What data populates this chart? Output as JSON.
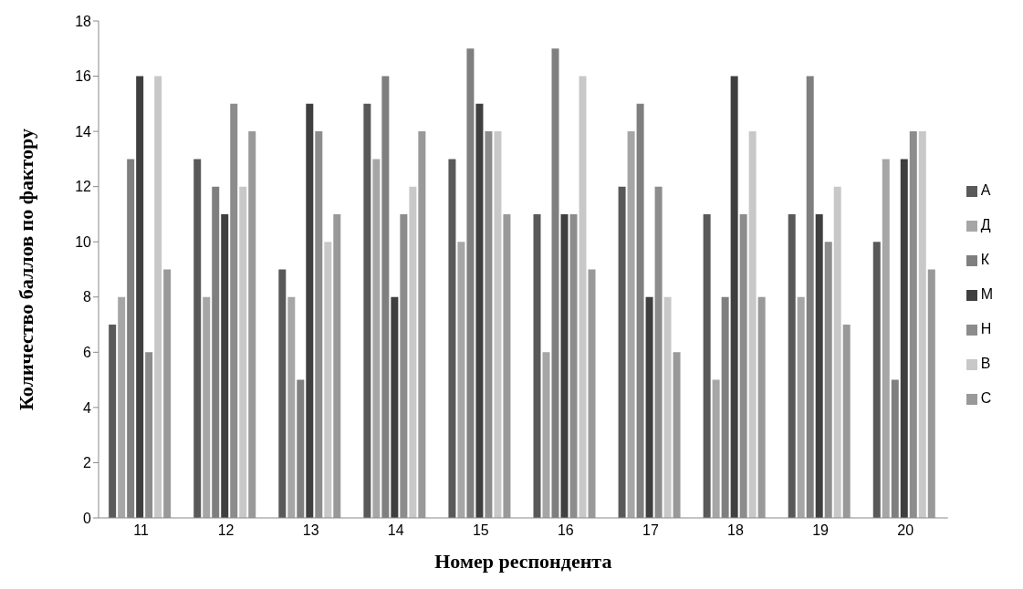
{
  "chart_data": {
    "type": "bar",
    "xlabel": "Номер респондента",
    "ylabel": "Количество баллов по фактору",
    "categories": [
      "11",
      "12",
      "13",
      "14",
      "15",
      "16",
      "17",
      "18",
      "19",
      "20"
    ],
    "series": [
      {
        "name": "А",
        "color": "#595959",
        "values": [
          7,
          13,
          9,
          15,
          13,
          11,
          12,
          11,
          11,
          10
        ]
      },
      {
        "name": "Д",
        "color": "#a6a6a6",
        "values": [
          8,
          8,
          8,
          13,
          10,
          6,
          14,
          5,
          8,
          13
        ]
      },
      {
        "name": "К",
        "color": "#7f7f7f",
        "values": [
          13,
          12,
          5,
          16,
          17,
          17,
          15,
          8,
          16,
          5
        ]
      },
      {
        "name": "М",
        "color": "#3f3f3f",
        "values": [
          16,
          11,
          15,
          8,
          15,
          11,
          8,
          16,
          11,
          13
        ]
      },
      {
        "name": "Н",
        "color": "#8c8c8c",
        "values": [
          6,
          15,
          14,
          11,
          14,
          11,
          12,
          11,
          10,
          14
        ]
      },
      {
        "name": "В",
        "color": "#c8c8c8",
        "values": [
          16,
          12,
          10,
          12,
          14,
          16,
          8,
          14,
          12,
          14
        ]
      },
      {
        "name": "С",
        "color": "#999999",
        "values": [
          9,
          14,
          11,
          14,
          11,
          9,
          6,
          8,
          7,
          9
        ]
      }
    ],
    "ylim": [
      0,
      18
    ],
    "yticks": [
      0,
      2,
      4,
      6,
      8,
      10,
      12,
      14,
      16,
      18
    ],
    "grid": false,
    "legend": "right"
  }
}
